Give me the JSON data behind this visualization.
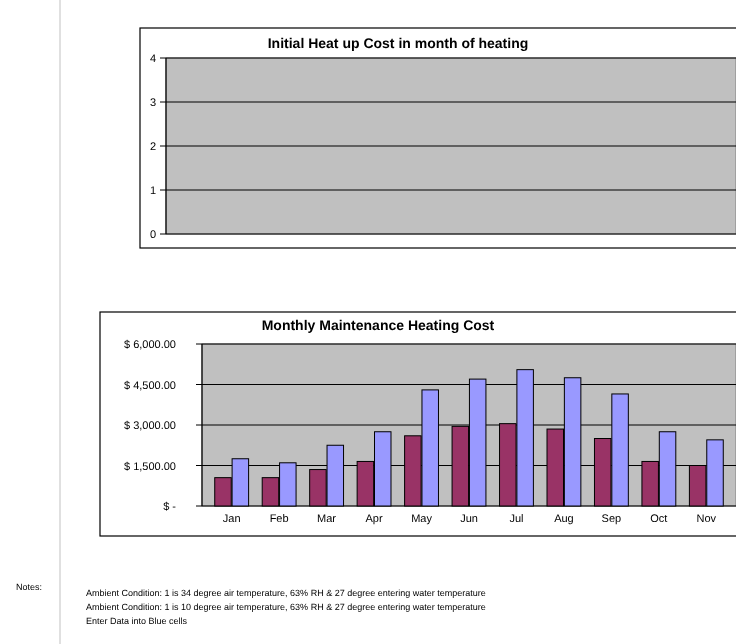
{
  "chart_data": [
    {
      "type": "bar",
      "title": "Monthly Maintenance Heating Cost",
      "categories": [
        "Jan",
        "Feb",
        "Mar",
        "Apr",
        "May",
        "Jun",
        "Jul",
        "Aug",
        "Sep",
        "Oct",
        "Nov"
      ],
      "series": [
        {
          "color": "#993366",
          "values": [
            1050,
            1050,
            1350,
            1650,
            2600,
            2950,
            3050,
            2850,
            2500,
            1650,
            1500
          ]
        },
        {
          "color": "#9999ff",
          "values": [
            1750,
            1600,
            2250,
            2750,
            4300,
            4700,
            5050,
            4750,
            4150,
            2750,
            2450
          ]
        }
      ],
      "ylim": [
        0,
        6000
      ],
      "yticks": [
        {
          "value": 0,
          "label": "$ -"
        },
        {
          "value": 1500,
          "label": "$ 1,500.00"
        },
        {
          "value": 3000,
          "label": "$ 3,000.00"
        },
        {
          "value": 4500,
          "label": "$ 4,500.00"
        },
        {
          "value": 6000,
          "label": "$ 6,000.00"
        }
      ],
      "grid": "y",
      "annotations": [
        "Notes:",
        "Ambient Condition: 1 is 34 degree air temperature, 63% RH & 27 degree entering water temperature",
        "Ambient Condition: 1 is 10 degree air temperature, 63% RH & 27 degree entering water temperature",
        "Enter Data into Blue cells"
      ]
    },
    {
      "type": "bar",
      "title": "Initial Heat up Cost in month of heating",
      "categories": [
        null,
        null,
        null,
        null,
        null,
        null,
        null,
        null,
        null,
        null,
        null
      ],
      "series": [
        {
          "color": "#9999ff",
          "values": [
            0,
            0,
            0,
            0,
            0,
            0,
            0,
            0,
            0,
            0,
            0
          ]
        }
      ],
      "ylim": [
        0,
        4
      ],
      "yticks": [
        0,
        1,
        2,
        3,
        4
      ],
      "grid": "y",
      "tick_labels": "y"
    }
  ]
}
